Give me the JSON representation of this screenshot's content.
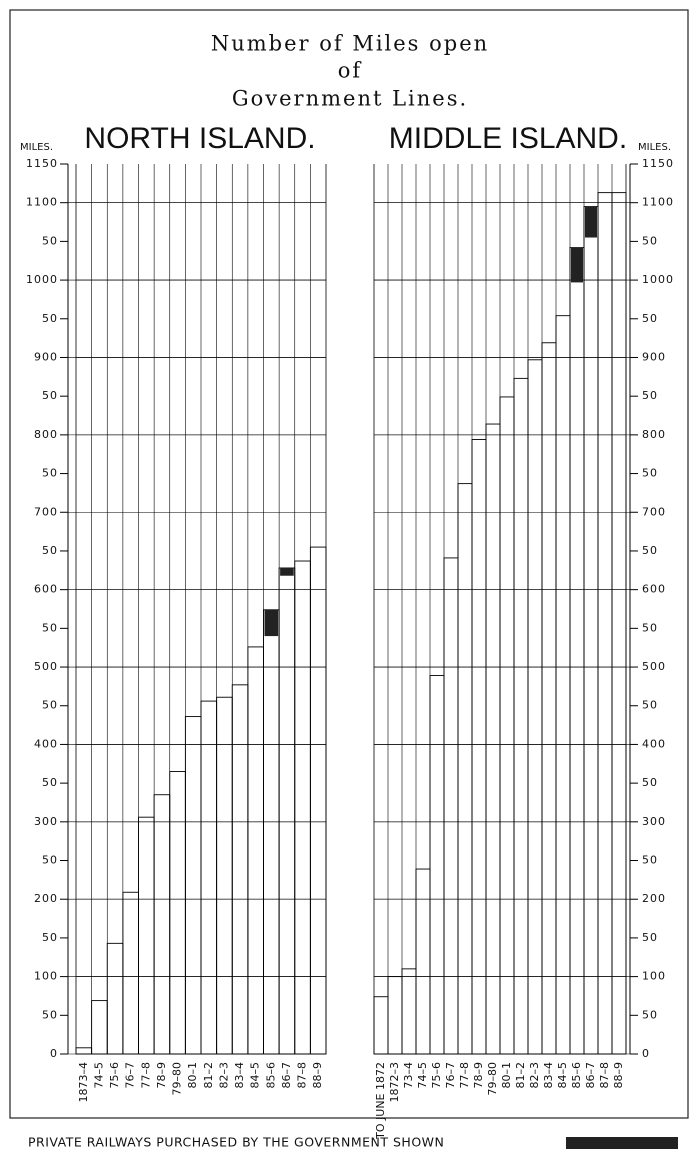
{
  "title_lines": [
    "Number of Miles open",
    "of",
    "Government Lines."
  ],
  "legend": {
    "label": "PRIVATE RAILWAYS PURCHASED BY THE GOVERNMENT SHOWN",
    "color": "#222222"
  },
  "chart_data": [
    {
      "type": "bar",
      "title": "NORTH ISLAND.",
      "ylabel": "MILES.",
      "axis_side": "left",
      "color": "#000000",
      "private_color": "#222222",
      "grid": true,
      "categories": [
        "1873–4",
        "74–5",
        "75–6",
        "76–7",
        "77–8",
        "78–9",
        "79–80",
        "80–1",
        "81–2",
        "82–3",
        "83–4",
        "84–5",
        "85–6",
        "86–7",
        "87–8",
        "88–9"
      ],
      "values": [
        8,
        69,
        143,
        209,
        306,
        335,
        365,
        436,
        456,
        461,
        477,
        526,
        574,
        628,
        637,
        655
      ],
      "private_values": [
        null,
        null,
        null,
        null,
        null,
        null,
        null,
        null,
        null,
        null,
        null,
        null,
        34,
        10,
        null,
        null
      ],
      "ylim": [
        0,
        1150
      ],
      "yticks": [
        0,
        50,
        100,
        {
          "value": 150,
          "label": "50"
        },
        200,
        {
          "value": 250,
          "label": "50"
        },
        300,
        {
          "value": 350,
          "label": "50"
        },
        400,
        {
          "value": 450,
          "label": "50"
        },
        500,
        {
          "value": 550,
          "label": "50"
        },
        600,
        {
          "value": 650,
          "label": "50"
        },
        700,
        {
          "value": 750,
          "label": "50"
        },
        800,
        {
          "value": 850,
          "label": "50"
        },
        900,
        {
          "value": 950,
          "label": "50"
        },
        1000,
        {
          "value": 1050,
          "label": "50"
        },
        1100,
        1150
      ]
    },
    {
      "type": "bar",
      "title": "MIDDLE ISLAND.",
      "ylabel": "MILES.",
      "axis_side": "right",
      "color": "#000000",
      "private_color": "#222222",
      "grid": true,
      "categories": [
        "TO JUNE 1872",
        "1872–3",
        "73–4",
        "74–5",
        "75–6",
        "76–7",
        "77–8",
        "78–9",
        "79–80",
        "80–1",
        "81–2",
        "82–3",
        "83–4",
        "84–5",
        "85–6",
        "86–7",
        "87–8",
        "88–9"
      ],
      "values": [
        74,
        100,
        110,
        239,
        489,
        641,
        737,
        794,
        814,
        849,
        873,
        897,
        919,
        954,
        1042,
        1095,
        1113,
        1113
      ],
      "private_values": [
        null,
        null,
        null,
        null,
        null,
        null,
        null,
        null,
        null,
        null,
        null,
        null,
        null,
        null,
        45,
        40,
        null,
        null
      ],
      "ylim": [
        0,
        1150
      ],
      "yticks": [
        0,
        50,
        100,
        {
          "value": 150,
          "label": "50"
        },
        200,
        {
          "value": 250,
          "label": "50"
        },
        300,
        {
          "value": 350,
          "label": "50"
        },
        400,
        {
          "value": 450,
          "label": "50"
        },
        500,
        {
          "value": 550,
          "label": "50"
        },
        600,
        {
          "value": 650,
          "label": "50"
        },
        700,
        {
          "value": 750,
          "label": "50"
        },
        800,
        {
          "value": 850,
          "label": "50"
        },
        900,
        {
          "value": 950,
          "label": "50"
        },
        1000,
        {
          "value": 1050,
          "label": "50"
        },
        1100,
        1150
      ]
    }
  ]
}
